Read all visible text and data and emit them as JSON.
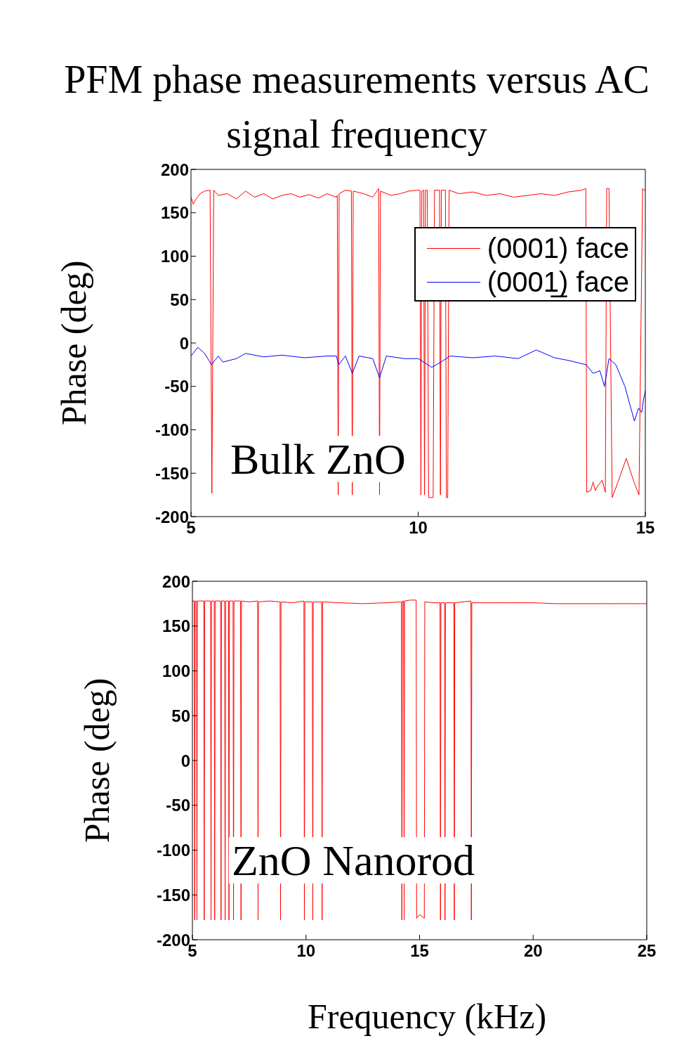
{
  "chart_data": [
    {
      "type": "line",
      "title": "PFM phase measurements versus AC signal frequency",
      "ylabel": "Phase (deg)",
      "annotations": [
        "Bulk ZnO"
      ],
      "xlim": [
        5,
        15
      ],
      "xticks": [
        5,
        10,
        15
      ],
      "ylim": [
        -200,
        200
      ],
      "yticks": [
        -200,
        -150,
        -100,
        -50,
        0,
        50,
        100,
        150,
        200
      ],
      "legend": "top right",
      "marker": "none",
      "line_style": "solid",
      "series": [
        {
          "name": "(0001) face",
          "color": "#ff0000",
          "x": [
            5,
            5.05,
            5.1,
            5.2,
            5.3,
            5.42,
            5.46,
            5.5,
            5.6,
            5.8,
            6.0,
            6.2,
            6.4,
            6.6,
            6.8,
            7.0,
            7.2,
            7.4,
            7.6,
            7.8,
            8.0,
            8.2,
            8.22,
            8.24,
            8.26,
            8.4,
            8.53,
            8.55,
            8.57,
            8.8,
            9.0,
            9.13,
            9.15,
            9.17,
            9.4,
            9.6,
            9.8,
            10.0,
            10.04,
            10.06,
            10.08,
            10.12,
            10.14,
            10.16,
            10.2,
            10.23,
            10.33,
            10.36,
            10.47,
            10.49,
            10.51,
            10.6,
            10.62,
            10.65,
            10.68,
            10.9,
            11.2,
            11.5,
            11.8,
            12.1,
            12.4,
            12.7,
            13.0,
            13.3,
            13.6,
            13.69,
            13.71,
            13.8,
            13.85,
            13.9,
            13.95,
            14.05,
            14.12,
            14.15,
            14.2,
            14.27,
            14.4,
            14.58,
            14.75,
            14.86,
            14.94,
            15
          ],
          "values": [
            168,
            160,
            165,
            172,
            175,
            176,
            -173,
            176,
            170,
            172,
            166,
            175,
            168,
            172,
            166,
            170,
            172,
            168,
            171,
            167,
            172,
            168,
            170,
            -175,
            172,
            176,
            175,
            -175,
            175,
            172,
            168,
            178,
            -175,
            175,
            170,
            172,
            175,
            176,
            176,
            -175,
            175,
            176,
            -175,
            176,
            176,
            -178,
            -178,
            176,
            176,
            -175,
            176,
            176,
            -178,
            -178,
            176,
            172,
            174,
            170,
            172,
            168,
            170,
            172,
            170,
            174,
            176,
            178,
            -172,
            -170,
            -160,
            -170,
            -165,
            -158,
            -172,
            178,
            178,
            -178,
            -160,
            -133,
            -160,
            -175,
            178,
            175
          ]
        },
        {
          "name": "(0001̲) face",
          "color": "#0000ff",
          "x": [
            5,
            5.15,
            5.3,
            5.45,
            5.6,
            5.7,
            6.0,
            6.2,
            6.6,
            7.0,
            7.5,
            8.0,
            8.2,
            8.25,
            8.4,
            8.55,
            8.7,
            9.0,
            9.15,
            9.3,
            9.7,
            10.0,
            10.3,
            10.5,
            10.7,
            11.2,
            11.7,
            12.2,
            12.6,
            13.0,
            13.3,
            13.7,
            13.85,
            14.0,
            14.1,
            14.2,
            14.35,
            14.55,
            14.76,
            14.85,
            14.92,
            14.96,
            15
          ],
          "values": [
            -15,
            -5,
            -12,
            -25,
            -15,
            -22,
            -18,
            -12,
            -16,
            -14,
            -17,
            -15,
            -15,
            -25,
            -15,
            -35,
            -15,
            -18,
            -40,
            -15,
            -18,
            -18,
            -28,
            -22,
            -15,
            -17,
            -15,
            -18,
            -8,
            -17,
            -20,
            -25,
            -35,
            -32,
            -50,
            -18,
            -25,
            -50,
            -90,
            -75,
            -80,
            -65,
            -55
          ]
        }
      ]
    },
    {
      "type": "line",
      "xlabel": "Frequency (kHz)",
      "ylabel": "Phase (deg)",
      "annotations": [
        "ZnO Nanorod"
      ],
      "xlim": [
        5,
        25
      ],
      "xticks": [
        5,
        10,
        15,
        20,
        25
      ],
      "ylim": [
        -200,
        200
      ],
      "yticks": [
        -200,
        -150,
        -100,
        -50,
        0,
        50,
        100,
        150,
        200
      ],
      "marker": "none",
      "line_style": "solid",
      "series": [
        {
          "color": "#ff0000",
          "x": [
            5,
            5.08,
            5.1,
            5.12,
            5.18,
            5.2,
            5.22,
            5.5,
            5.52,
            5.54,
            5.8,
            5.82,
            5.84,
            5.96,
            5.98,
            6.0,
            6.24,
            6.26,
            6.28,
            6.42,
            6.44,
            6.46,
            6.59,
            6.61,
            6.63,
            6.79,
            6.81,
            6.83,
            7.12,
            7.14,
            7.16,
            7.5,
            7.87,
            7.89,
            7.91,
            8.4,
            8.86,
            8.88,
            8.9,
            9.4,
            9.91,
            9.93,
            9.95,
            10.28,
            10.3,
            10.32,
            10.69,
            10.71,
            10.73,
            11.5,
            12.5,
            13.5,
            14.2,
            14.22,
            14.25,
            14.3,
            14.32,
            14.34,
            14.6,
            14.85,
            14.87,
            15.0,
            15.21,
            15.23,
            15.6,
            15.9,
            15.92,
            15.94,
            16.1,
            16.12,
            16.14,
            16.51,
            16.53,
            16.55,
            17.26,
            17.28,
            17.3,
            18,
            19,
            20,
            21,
            22,
            23,
            24,
            25
          ],
          "values": [
            178,
            178,
            -178,
            178,
            178,
            -178,
            178,
            178,
            -178,
            178,
            178,
            -178,
            178,
            178,
            -178,
            178,
            178,
            -178,
            178,
            178,
            -178,
            178,
            178,
            -178,
            178,
            178,
            -178,
            178,
            178,
            -178,
            178,
            177,
            178,
            -178,
            177,
            178,
            177,
            -178,
            177,
            176,
            178,
            -178,
            177,
            177,
            -178,
            177,
            177,
            -178,
            177,
            176,
            175,
            176,
            177,
            -178,
            178,
            178,
            -178,
            178,
            179,
            179,
            -176,
            -172,
            -176,
            177,
            176,
            176,
            -178,
            176,
            176,
            -178,
            176,
            176,
            -178,
            176,
            178,
            -178,
            176,
            176,
            176,
            176,
            175,
            175,
            175,
            175,
            175
          ]
        }
      ]
    }
  ]
}
